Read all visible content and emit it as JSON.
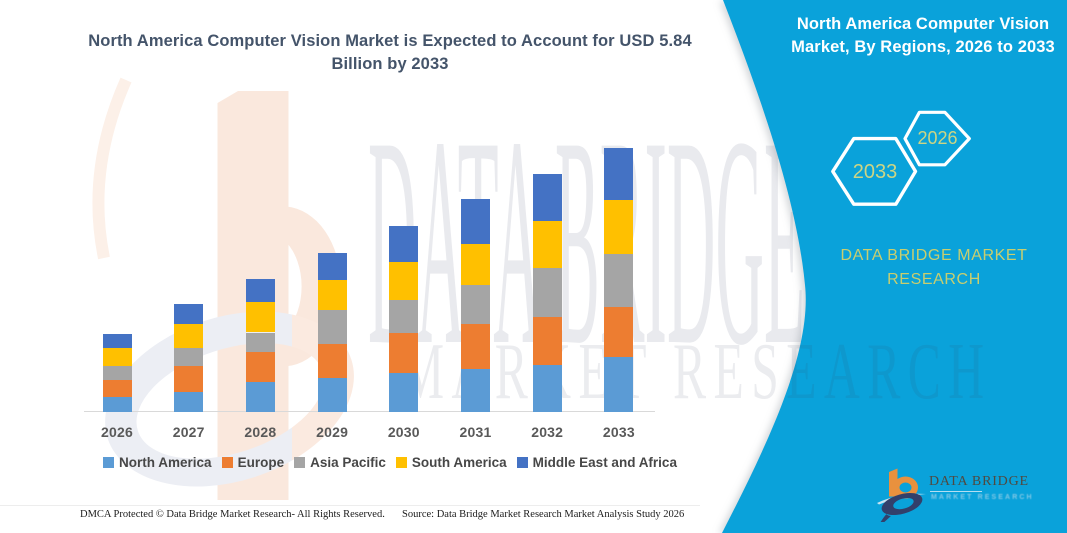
{
  "page": {
    "background": "#ffffff",
    "accent_teal": "#0AA2DA",
    "title_color": "#44546A",
    "khaki_text_color": "#C8CE6F"
  },
  "main_title": {
    "lines": [
      "North America Computer Vision Market is Expected to Account for USD 5.84",
      "Billion by 2033"
    ]
  },
  "right_panel": {
    "title_lines": [
      "North America Computer Vision",
      "Market, By Regions, 2026 to 2033"
    ],
    "hexagon_badges": [
      {
        "label": "2033"
      },
      {
        "label": "2026"
      }
    ],
    "brand_lines": [
      "DATA BRIDGE MARKET",
      "RESEARCH"
    ]
  },
  "watermarks": {
    "row1": "DATA BRIDGE",
    "row2": "MARKET RESEARCH"
  },
  "chart_data": {
    "type": "bar",
    "stacked": true,
    "title": "North America Computer Vision Market is Expected to Account for USD 5.84 Billion by 2033",
    "unit": "USD Billion",
    "xlabel": "",
    "ylabel": "",
    "ylim": [
      0,
      6
    ],
    "grid": false,
    "legend_position": "bottom",
    "categories": [
      "2026",
      "2027",
      "2028",
      "2029",
      "2030",
      "2031",
      "2032",
      "2033"
    ],
    "series": [
      {
        "name": "North America",
        "color": "#5B9BD5",
        "values": [
          0.33,
          0.45,
          0.67,
          0.75,
          0.87,
          0.96,
          1.04,
          1.22
        ]
      },
      {
        "name": "Europe",
        "color": "#ED7D31",
        "values": [
          0.38,
          0.56,
          0.66,
          0.76,
          0.87,
          0.99,
          1.07,
          1.1
        ]
      },
      {
        "name": "Asia Pacific",
        "color": "#A5A5A5",
        "values": [
          0.31,
          0.4,
          0.43,
          0.75,
          0.73,
          0.86,
          1.08,
          1.18
        ]
      },
      {
        "name": "South America",
        "color": "#FFC000",
        "values": [
          0.39,
          0.54,
          0.67,
          0.66,
          0.86,
          0.91,
          1.04,
          1.2
        ]
      },
      {
        "name": "Middle East and Africa",
        "color": "#4472C4",
        "values": [
          0.31,
          0.43,
          0.51,
          0.6,
          0.79,
          0.99,
          1.03,
          1.14
        ]
      }
    ],
    "totals": [
      1.72,
      2.38,
      2.94,
      3.52,
      4.12,
      4.71,
      5.26,
      5.84
    ]
  },
  "footer": {
    "left": "DMCA Protected © Data Bridge Market Research-  All Rights Reserved.",
    "right": "Source: Data Bridge Market Research  Market Analysis Study 2026"
  },
  "logo": {
    "name": "DATA BRIDGE",
    "tagline": "MARKET RESEARCH"
  }
}
